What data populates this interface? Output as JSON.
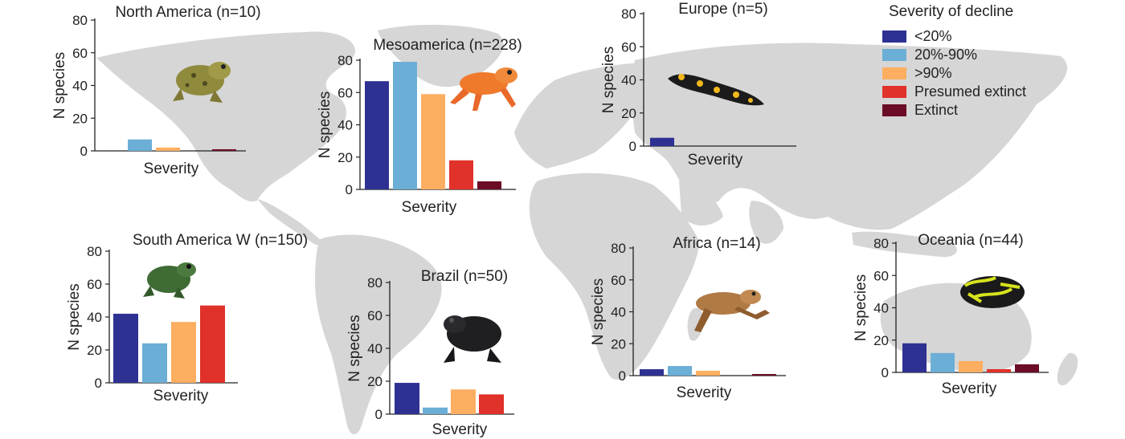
{
  "legend": {
    "title": "Severity of decline",
    "items": [
      {
        "label": "<20%",
        "color": "#2e3192"
      },
      {
        "label": "20%-90%",
        "color": "#6baed6"
      },
      {
        "label": ">90%",
        "color": "#fdae61"
      },
      {
        "label": "Presumed extinct",
        "color": "#e0312a"
      },
      {
        "label": "Extinct",
        "color": "#6b0d26"
      }
    ]
  },
  "chart_data": [
    {
      "type": "bar",
      "title": "North America (n=10)",
      "xlabel": "Severity",
      "ylabel": "N species",
      "ylim": [
        0,
        80
      ],
      "yticks": [
        0,
        20,
        40,
        60,
        80
      ],
      "categories": [
        "<20%",
        "20%-90%",
        ">90%",
        "Presumed extinct",
        "Extinct"
      ],
      "values": [
        0,
        7,
        2,
        0,
        1
      ]
    },
    {
      "type": "bar",
      "title": "Mesoamerica (n=228)",
      "xlabel": "Severity",
      "ylabel": "N species",
      "ylim": [
        0,
        80
      ],
      "yticks": [
        0,
        20,
        40,
        60,
        80
      ],
      "categories": [
        "<20%",
        "20%-90%",
        ">90%",
        "Presumed extinct",
        "Extinct"
      ],
      "values": [
        67,
        79,
        59,
        18,
        5
      ]
    },
    {
      "type": "bar",
      "title": "Europe (n=5)",
      "xlabel": "Severity",
      "ylabel": "N species",
      "ylim": [
        0,
        80
      ],
      "yticks": [
        0,
        20,
        40,
        60,
        80
      ],
      "categories": [
        "<20%",
        "20%-90%",
        ">90%",
        "Presumed extinct",
        "Extinct"
      ],
      "values": [
        5,
        0,
        0,
        0,
        0
      ]
    },
    {
      "type": "bar",
      "title": "South America W (n=150)",
      "xlabel": "Severity",
      "ylabel": "N species",
      "ylim": [
        0,
        80
      ],
      "yticks": [
        0,
        20,
        40,
        60,
        80
      ],
      "categories": [
        "<20%",
        "20%-90%",
        ">90%",
        "Presumed extinct",
        "Extinct"
      ],
      "values": [
        42,
        24,
        37,
        47,
        0
      ]
    },
    {
      "type": "bar",
      "title": "Brazil (n=50)",
      "xlabel": "Severity",
      "ylabel": "N species",
      "ylim": [
        0,
        80
      ],
      "yticks": [
        0,
        20,
        40,
        60,
        80
      ],
      "categories": [
        "<20%",
        "20%-90%",
        ">90%",
        "Presumed extinct",
        "Extinct"
      ],
      "values": [
        19,
        4,
        15,
        12,
        0
      ]
    },
    {
      "type": "bar",
      "title": "Africa (n=14)",
      "xlabel": "Severity",
      "ylabel": "N species",
      "ylim": [
        0,
        80
      ],
      "yticks": [
        0,
        20,
        40,
        60,
        80
      ],
      "categories": [
        "<20%",
        "20%-90%",
        ">90%",
        "Presumed extinct",
        "Extinct"
      ],
      "values": [
        4,
        6,
        3,
        0,
        1
      ]
    },
    {
      "type": "bar",
      "title": "Oceania (n=44)",
      "xlabel": "Severity",
      "ylabel": "N species",
      "ylim": [
        0,
        80
      ],
      "yticks": [
        0,
        20,
        40,
        60,
        80
      ],
      "categories": [
        "<20%",
        "20%-90%",
        ">90%",
        "Presumed extinct",
        "Extinct"
      ],
      "values": [
        18,
        12,
        7,
        2,
        5
      ]
    }
  ]
}
